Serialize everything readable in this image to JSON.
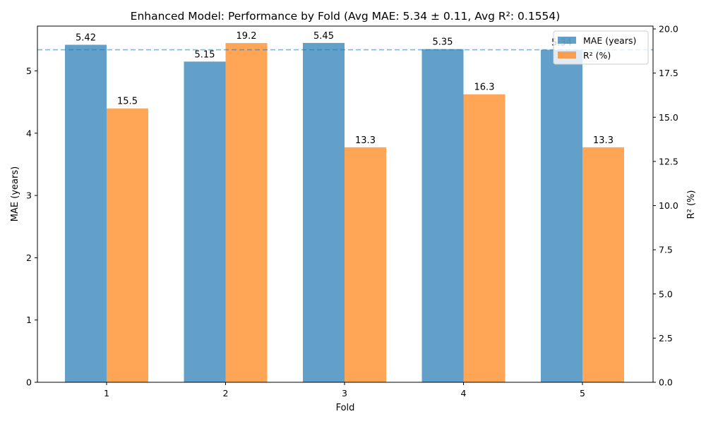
{
  "chart_data": {
    "type": "bar",
    "title": "Enhanced Model: Performance by Fold (Avg MAE: 5.34 ± 0.11, Avg R²: 0.1554)",
    "xlabel": "Fold",
    "ylabel_left": "MAE (years)",
    "ylabel_right": "R² (%)",
    "categories": [
      "1",
      "2",
      "3",
      "4",
      "5"
    ],
    "series": [
      {
        "name": "MAE (years)",
        "axis": "left",
        "color": "#1f77b4",
        "values": [
          5.42,
          5.15,
          5.45,
          5.35,
          5.34
        ],
        "labels": [
          "5.42",
          "5.15",
          "5.45",
          "5.35",
          "5.34"
        ]
      },
      {
        "name": "R² (%)",
        "axis": "right",
        "color": "#ff7f0e",
        "values": [
          15.5,
          19.2,
          13.3,
          16.3,
          13.3
        ],
        "labels": [
          "15.5",
          "19.2",
          "13.3",
          "16.3",
          "13.3"
        ]
      }
    ],
    "ylim_left": [
      0,
      5.72
    ],
    "ylim_right": [
      0,
      20.16
    ],
    "yticks_left": [
      "0",
      "1",
      "2",
      "3",
      "4",
      "5"
    ],
    "yticks_right": [
      "0.0",
      "2.5",
      "5.0",
      "7.5",
      "10.0",
      "12.5",
      "15.0",
      "17.5",
      "20.0"
    ],
    "reference_line": {
      "axis": "left",
      "value": 5.34,
      "style": "dashed",
      "color": "#1f77b4"
    },
    "grid": false,
    "legend_position": "top-right"
  }
}
